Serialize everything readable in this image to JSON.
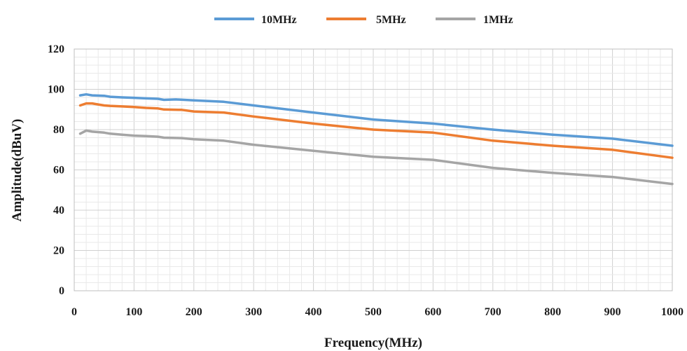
{
  "chart_data": {
    "type": "line",
    "title": "",
    "xlabel": "Frequency(MHz)",
    "ylabel": "Amplitude(dBuV)",
    "xlim": [
      0,
      1000
    ],
    "ylim": [
      0,
      120
    ],
    "x_ticks": [
      0,
      100,
      200,
      300,
      400,
      500,
      600,
      700,
      800,
      900,
      1000
    ],
    "y_ticks": [
      0,
      20,
      40,
      60,
      80,
      100,
      120
    ],
    "grid": true,
    "legend_position": "top-center",
    "series": [
      {
        "name": "10MHz",
        "color": "#5b9bd5",
        "points": [
          [
            10,
            97
          ],
          [
            20,
            97.5
          ],
          [
            30,
            97
          ],
          [
            50,
            96.8
          ],
          [
            60,
            96.3
          ],
          [
            80,
            96
          ],
          [
            100,
            95.8
          ],
          [
            120,
            95.5
          ],
          [
            140,
            95.3
          ],
          [
            150,
            94.8
          ],
          [
            170,
            95
          ],
          [
            200,
            94.5
          ],
          [
            250,
            93.8
          ],
          [
            300,
            92
          ],
          [
            400,
            88.5
          ],
          [
            500,
            85
          ],
          [
            600,
            83
          ],
          [
            700,
            80
          ],
          [
            800,
            77.5
          ],
          [
            900,
            75.5
          ],
          [
            1000,
            72
          ]
        ]
      },
      {
        "name": "5MHz",
        "color": "#ed7d31",
        "points": [
          [
            10,
            92
          ],
          [
            20,
            93
          ],
          [
            30,
            93
          ],
          [
            40,
            92.5
          ],
          [
            50,
            92
          ],
          [
            60,
            91.8
          ],
          [
            80,
            91.5
          ],
          [
            100,
            91.2
          ],
          [
            120,
            90.8
          ],
          [
            140,
            90.5
          ],
          [
            150,
            90
          ],
          [
            180,
            89.8
          ],
          [
            200,
            89
          ],
          [
            250,
            88.5
          ],
          [
            300,
            86.5
          ],
          [
            400,
            83
          ],
          [
            500,
            80
          ],
          [
            600,
            78.5
          ],
          [
            700,
            74.5
          ],
          [
            800,
            72
          ],
          [
            900,
            70
          ],
          [
            1000,
            66
          ]
        ]
      },
      {
        "name": "1MHz",
        "color": "#a5a5a5",
        "points": [
          [
            10,
            78
          ],
          [
            20,
            79.5
          ],
          [
            30,
            79
          ],
          [
            50,
            78.5
          ],
          [
            60,
            78
          ],
          [
            80,
            77.5
          ],
          [
            100,
            77
          ],
          [
            120,
            76.8
          ],
          [
            140,
            76.5
          ],
          [
            150,
            76
          ],
          [
            180,
            75.8
          ],
          [
            200,
            75.2
          ],
          [
            250,
            74.5
          ],
          [
            300,
            72.5
          ],
          [
            400,
            69.5
          ],
          [
            500,
            66.5
          ],
          [
            600,
            65
          ],
          [
            700,
            61
          ],
          [
            800,
            58.5
          ],
          [
            900,
            56.5
          ],
          [
            1000,
            53
          ]
        ]
      }
    ]
  }
}
